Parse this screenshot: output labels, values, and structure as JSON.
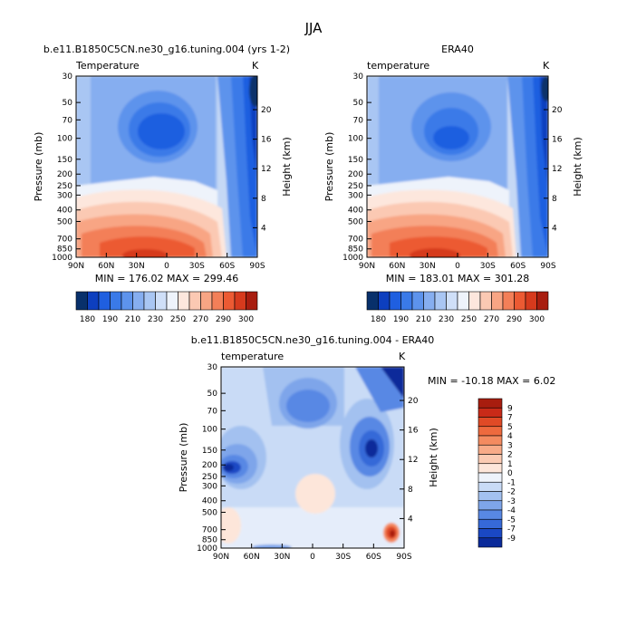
{
  "page": {
    "title": "JJA"
  },
  "chart_data": [
    {
      "type": "heatmap",
      "id": "model",
      "title": "b.e11.B1850C5CN.ne30_g16.tuning.004 (yrs 1-2)",
      "left_label": "Temperature",
      "right_label": "K",
      "xlabel": "",
      "ylabel": "Pressure (mb)",
      "y2label": "Height (km)",
      "x_ticks": [
        "90N",
        "60N",
        "30N",
        "0",
        "30S",
        "60S",
        "90S"
      ],
      "y_ticks": [
        "30",
        "50",
        "70",
        "100",
        "150",
        "200",
        "250",
        "300",
        "400",
        "500",
        "700",
        "850",
        "1000"
      ],
      "y2_ticks": [
        "20",
        "16",
        "12",
        "8",
        "4"
      ],
      "stats_text": "MIN = 176.02   MAX = 299.46",
      "min": 176.02,
      "max": 299.46,
      "grid": false
    },
    {
      "type": "heatmap",
      "id": "era40",
      "title": "ERA40",
      "left_label": "temperature",
      "right_label": "K",
      "xlabel": "",
      "ylabel": "Pressure (mb)",
      "y2label": "Height (km)",
      "x_ticks": [
        "90N",
        "60N",
        "30N",
        "0",
        "30S",
        "60S",
        "90S"
      ],
      "y_ticks": [
        "30",
        "50",
        "70",
        "100",
        "150",
        "200",
        "250",
        "300",
        "400",
        "500",
        "700",
        "850",
        "1000"
      ],
      "y2_ticks": [
        "20",
        "16",
        "12",
        "8",
        "4"
      ],
      "stats_text": "MIN = 183.01   MAX = 301.28",
      "min": 183.01,
      "max": 301.28,
      "grid": false
    },
    {
      "type": "heatmap",
      "id": "diff",
      "title": "b.e11.B1850C5CN.ne30_g16.tuning.004 - ERA40",
      "left_label": "temperature",
      "right_label": "K",
      "xlabel": "",
      "ylabel": "Pressure (mb)",
      "y2label": "Height (km)",
      "x_ticks": [
        "90N",
        "60N",
        "30N",
        "0",
        "30S",
        "60S",
        "90S"
      ],
      "y_ticks": [
        "30",
        "50",
        "70",
        "100",
        "150",
        "200",
        "250",
        "300",
        "400",
        "500",
        "700",
        "850",
        "1000"
      ],
      "y2_ticks": [
        "20",
        "16",
        "12",
        "8",
        "4"
      ],
      "stats_text": "MIN = -10.18   MAX =    6.02",
      "min": -10.18,
      "max": 6.02,
      "grid": false
    }
  ],
  "colorbars": {
    "temperature": {
      "orientation": "horizontal",
      "labels": [
        "180",
        "190",
        "210",
        "230",
        "250",
        "270",
        "290",
        "300"
      ],
      "colors": [
        "#08306b",
        "#0d3fbf",
        "#1f5fe0",
        "#3a7ae8",
        "#5d93ec",
        "#86aef0",
        "#a9c6f3",
        "#cfdff8",
        "#eef3fb",
        "#fde7dd",
        "#fbc9b3",
        "#f8a584",
        "#f37f58",
        "#ec5a33",
        "#d63a1d",
        "#a81d0f"
      ]
    },
    "difference": {
      "orientation": "vertical",
      "labels": [
        "9",
        "7",
        "5",
        "4",
        "3",
        "2",
        "1",
        "0",
        "-1",
        "-2",
        "-3",
        "-4",
        "-5",
        "-7",
        "-9"
      ],
      "colors": [
        "#a81d0f",
        "#c92a18",
        "#e04a26",
        "#ee6a3e",
        "#f48b60",
        "#f8ab88",
        "#fbcbb3",
        "#fde6da",
        "#eef3fb",
        "#c9dbf6",
        "#a3c1f0",
        "#7ea5ea",
        "#5888e4",
        "#3669d8",
        "#1a48c4",
        "#0a2a9a"
      ]
    }
  }
}
